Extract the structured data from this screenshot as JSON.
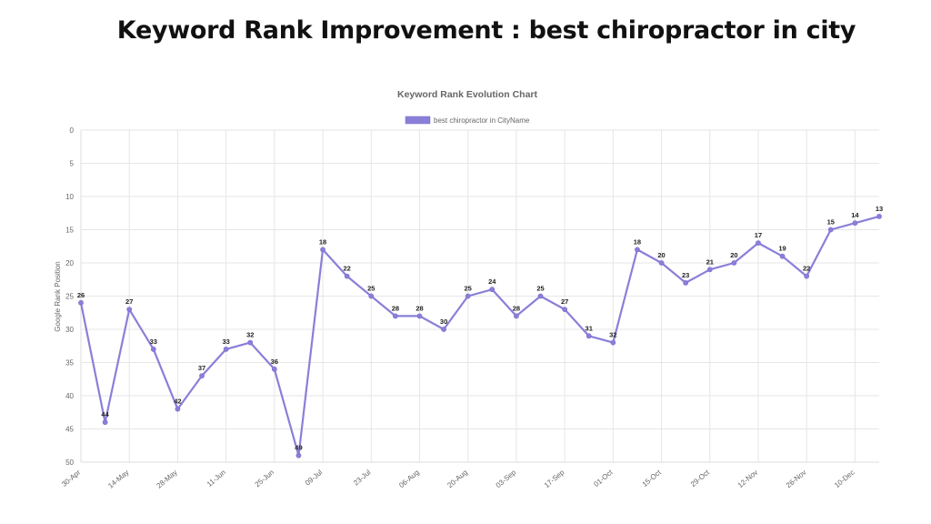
{
  "header": {
    "title": "Keyword Rank Improvement : best chiropractor in city"
  },
  "chart_data": {
    "type": "line",
    "title": "Keyword Rank Evolution Chart",
    "ylabel": "Google Rank Position",
    "xlabel": "",
    "ylim": [
      0,
      50
    ],
    "y_reversed": true,
    "y_ticks": [
      0,
      5,
      10,
      15,
      20,
      25,
      30,
      35,
      40,
      45,
      50
    ],
    "grid": true,
    "legend_position": "top-center",
    "color": "#8a7fd8",
    "x_tick_labels": [
      "30-Apr",
      "14-May",
      "28-May",
      "11-Jun",
      "25-Jun",
      "09-Jul",
      "23-Jul",
      "06-Aug",
      "20-Aug",
      "03-Sep",
      "17-Sep",
      "01-Oct",
      "15-Oct",
      "29-Oct",
      "12-Nov",
      "26-Nov",
      "10-Dec"
    ],
    "series": [
      {
        "name": "best chiropractor in CityName",
        "values": [
          26,
          44,
          27,
          33,
          42,
          37,
          33,
          32,
          36,
          49,
          18,
          22,
          25,
          28,
          28,
          30,
          25,
          24,
          28,
          25,
          27,
          31,
          32,
          18,
          20,
          23,
          21,
          20,
          17,
          19,
          22,
          15,
          14,
          13
        ]
      }
    ]
  }
}
